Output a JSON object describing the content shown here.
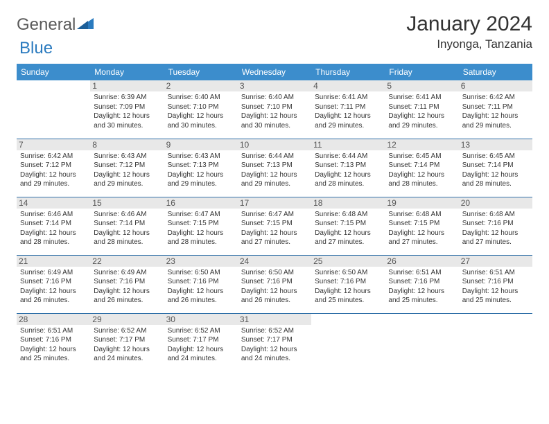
{
  "brand": {
    "text1": "General",
    "text2": "Blue"
  },
  "title": "January 2024",
  "location": "Inyonga, Tanzania",
  "colors": {
    "header_bg": "#3c8dcc",
    "header_text": "#ffffff",
    "row_border": "#2f6fa8",
    "daynum_bg": "#e8e8e8",
    "brand_gray": "#5a5a5a",
    "brand_blue": "#2b7bbf"
  },
  "weekdays": [
    "Sunday",
    "Monday",
    "Tuesday",
    "Wednesday",
    "Thursday",
    "Friday",
    "Saturday"
  ],
  "weeks": [
    [
      null,
      {
        "n": "1",
        "sr": "6:39 AM",
        "ss": "7:09 PM",
        "dl": "12 hours and 30 minutes."
      },
      {
        "n": "2",
        "sr": "6:40 AM",
        "ss": "7:10 PM",
        "dl": "12 hours and 30 minutes."
      },
      {
        "n": "3",
        "sr": "6:40 AM",
        "ss": "7:10 PM",
        "dl": "12 hours and 30 minutes."
      },
      {
        "n": "4",
        "sr": "6:41 AM",
        "ss": "7:11 PM",
        "dl": "12 hours and 29 minutes."
      },
      {
        "n": "5",
        "sr": "6:41 AM",
        "ss": "7:11 PM",
        "dl": "12 hours and 29 minutes."
      },
      {
        "n": "6",
        "sr": "6:42 AM",
        "ss": "7:11 PM",
        "dl": "12 hours and 29 minutes."
      }
    ],
    [
      {
        "n": "7",
        "sr": "6:42 AM",
        "ss": "7:12 PM",
        "dl": "12 hours and 29 minutes."
      },
      {
        "n": "8",
        "sr": "6:43 AM",
        "ss": "7:12 PM",
        "dl": "12 hours and 29 minutes."
      },
      {
        "n": "9",
        "sr": "6:43 AM",
        "ss": "7:13 PM",
        "dl": "12 hours and 29 minutes."
      },
      {
        "n": "10",
        "sr": "6:44 AM",
        "ss": "7:13 PM",
        "dl": "12 hours and 29 minutes."
      },
      {
        "n": "11",
        "sr": "6:44 AM",
        "ss": "7:13 PM",
        "dl": "12 hours and 28 minutes."
      },
      {
        "n": "12",
        "sr": "6:45 AM",
        "ss": "7:14 PM",
        "dl": "12 hours and 28 minutes."
      },
      {
        "n": "13",
        "sr": "6:45 AM",
        "ss": "7:14 PM",
        "dl": "12 hours and 28 minutes."
      }
    ],
    [
      {
        "n": "14",
        "sr": "6:46 AM",
        "ss": "7:14 PM",
        "dl": "12 hours and 28 minutes."
      },
      {
        "n": "15",
        "sr": "6:46 AM",
        "ss": "7:14 PM",
        "dl": "12 hours and 28 minutes."
      },
      {
        "n": "16",
        "sr": "6:47 AM",
        "ss": "7:15 PM",
        "dl": "12 hours and 28 minutes."
      },
      {
        "n": "17",
        "sr": "6:47 AM",
        "ss": "7:15 PM",
        "dl": "12 hours and 27 minutes."
      },
      {
        "n": "18",
        "sr": "6:48 AM",
        "ss": "7:15 PM",
        "dl": "12 hours and 27 minutes."
      },
      {
        "n": "19",
        "sr": "6:48 AM",
        "ss": "7:15 PM",
        "dl": "12 hours and 27 minutes."
      },
      {
        "n": "20",
        "sr": "6:48 AM",
        "ss": "7:16 PM",
        "dl": "12 hours and 27 minutes."
      }
    ],
    [
      {
        "n": "21",
        "sr": "6:49 AM",
        "ss": "7:16 PM",
        "dl": "12 hours and 26 minutes."
      },
      {
        "n": "22",
        "sr": "6:49 AM",
        "ss": "7:16 PM",
        "dl": "12 hours and 26 minutes."
      },
      {
        "n": "23",
        "sr": "6:50 AM",
        "ss": "7:16 PM",
        "dl": "12 hours and 26 minutes."
      },
      {
        "n": "24",
        "sr": "6:50 AM",
        "ss": "7:16 PM",
        "dl": "12 hours and 26 minutes."
      },
      {
        "n": "25",
        "sr": "6:50 AM",
        "ss": "7:16 PM",
        "dl": "12 hours and 25 minutes."
      },
      {
        "n": "26",
        "sr": "6:51 AM",
        "ss": "7:16 PM",
        "dl": "12 hours and 25 minutes."
      },
      {
        "n": "27",
        "sr": "6:51 AM",
        "ss": "7:16 PM",
        "dl": "12 hours and 25 minutes."
      }
    ],
    [
      {
        "n": "28",
        "sr": "6:51 AM",
        "ss": "7:16 PM",
        "dl": "12 hours and 25 minutes."
      },
      {
        "n": "29",
        "sr": "6:52 AM",
        "ss": "7:17 PM",
        "dl": "12 hours and 24 minutes."
      },
      {
        "n": "30",
        "sr": "6:52 AM",
        "ss": "7:17 PM",
        "dl": "12 hours and 24 minutes."
      },
      {
        "n": "31",
        "sr": "6:52 AM",
        "ss": "7:17 PM",
        "dl": "12 hours and 24 minutes."
      },
      null,
      null,
      null
    ]
  ],
  "labels": {
    "sunrise": "Sunrise:",
    "sunset": "Sunset:",
    "daylight": "Daylight:"
  }
}
